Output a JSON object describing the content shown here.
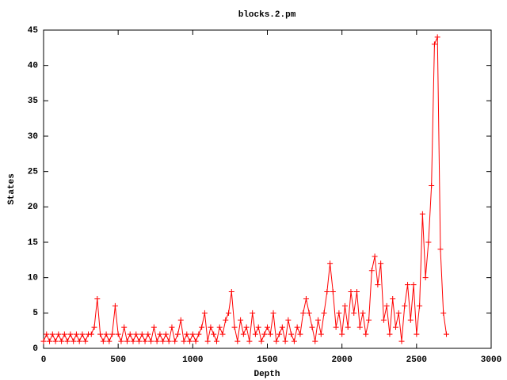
{
  "chart_data": {
    "type": "line",
    "title": "blocks.2.pm",
    "x_label": "Depth",
    "y_label": "States",
    "color": "#ff0000",
    "marker": "+",
    "x": [
      0,
      20,
      40,
      60,
      80,
      100,
      120,
      140,
      160,
      180,
      200,
      220,
      240,
      260,
      280,
      300,
      320,
      340,
      360,
      380,
      400,
      420,
      440,
      460,
      480,
      500,
      520,
      540,
      560,
      580,
      600,
      620,
      640,
      660,
      680,
      700,
      720,
      740,
      760,
      780,
      800,
      820,
      840,
      860,
      880,
      900,
      920,
      940,
      960,
      980,
      1000,
      1020,
      1040,
      1060,
      1080,
      1100,
      1120,
      1140,
      1160,
      1180,
      1200,
      1220,
      1240,
      1260,
      1280,
      1300,
      1320,
      1340,
      1360,
      1380,
      1400,
      1420,
      1440,
      1460,
      1480,
      1500,
      1520,
      1540,
      1560,
      1580,
      1600,
      1620,
      1640,
      1660,
      1680,
      1700,
      1720,
      1740,
      1760,
      1780,
      1800,
      1820,
      1840,
      1860,
      1880,
      1900,
      1920,
      1940,
      1960,
      1980,
      2000,
      2020,
      2040,
      2060,
      2080,
      2100,
      2120,
      2140,
      2160,
      2180,
      2200,
      2220,
      2240,
      2260,
      2280,
      2300,
      2320,
      2340,
      2360,
      2380,
      2400,
      2420,
      2440,
      2460,
      2480,
      2500,
      2520,
      2540,
      2560,
      2580,
      2600,
      2620,
      2640,
      2660,
      2680,
      2700
    ],
    "values": [
      1,
      2,
      1,
      2,
      1,
      2,
      1,
      2,
      1,
      2,
      1,
      2,
      1,
      2,
      1,
      2,
      2,
      3,
      7,
      2,
      1,
      2,
      1,
      2,
      6,
      2,
      1,
      3,
      1,
      2,
      1,
      2,
      1,
      2,
      1,
      2,
      1,
      3,
      1,
      2,
      1,
      2,
      1,
      3,
      1,
      2,
      4,
      1,
      2,
      1,
      2,
      1,
      2,
      3,
      5,
      1,
      3,
      2,
      1,
      3,
      2,
      4,
      5,
      8,
      3,
      1,
      4,
      2,
      3,
      1,
      5,
      2,
      3,
      1,
      2,
      3,
      2,
      5,
      1,
      2,
      3,
      1,
      4,
      2,
      1,
      3,
      2,
      5,
      7,
      5,
      3,
      1,
      4,
      2,
      5,
      8,
      12,
      8,
      3,
      5,
      2,
      6,
      3,
      8,
      5,
      8,
      3,
      5,
      2,
      4,
      11,
      13,
      9,
      12,
      4,
      6,
      2,
      7,
      3,
      5,
      1,
      6,
      9,
      4,
      9,
      2,
      6,
      19,
      10,
      15,
      23,
      43,
      44,
      14,
      5,
      2
    ],
    "xlim": [
      0,
      3000
    ],
    "xticks": [
      0,
      500,
      1000,
      1500,
      2000,
      2500,
      3000
    ],
    "ylim": [
      0,
      45
    ],
    "yticks": [
      0,
      5,
      10,
      15,
      20,
      25,
      30,
      35,
      40,
      45
    ]
  }
}
